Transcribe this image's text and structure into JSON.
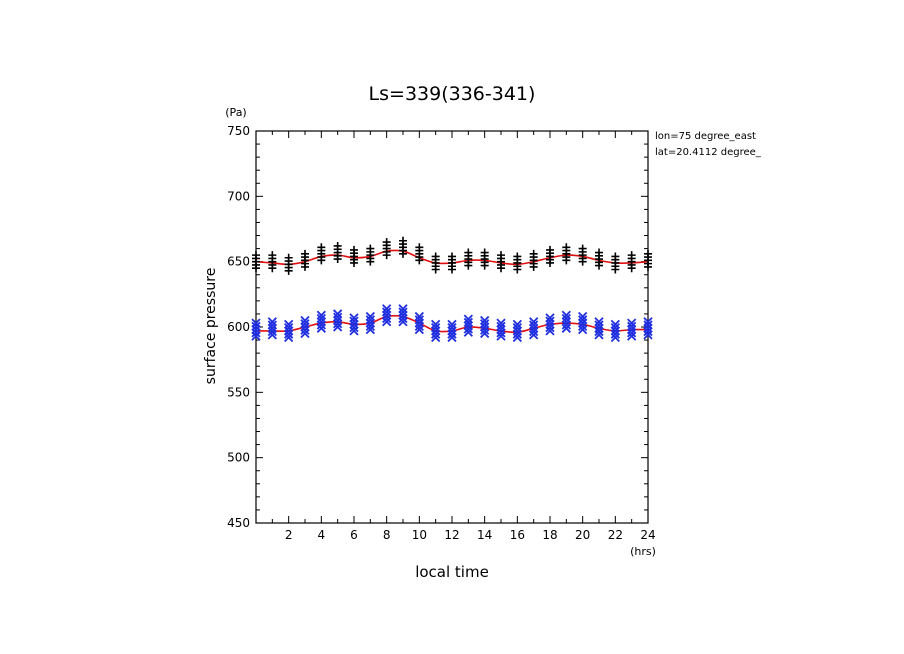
{
  "chart_data": {
    "type": "scatter",
    "title": "Ls=339(336-341)",
    "ylabel": "surface pressure",
    "yunit": "(Pa)",
    "xlabel": "local time",
    "xunit": "(hrs)",
    "annotations": [
      "lon=75 degree_east",
      "lat=20.4112 degree_"
    ],
    "xlim": [
      0,
      24
    ],
    "ylim": [
      450,
      750
    ],
    "xticks": [
      2,
      4,
      6,
      8,
      10,
      12,
      14,
      16,
      18,
      20,
      22,
      24
    ],
    "yticks": [
      450,
      500,
      550,
      600,
      650,
      700,
      750
    ],
    "grid": false,
    "colors": {
      "upper_markers": "#000000",
      "lower_markers": "#1f2fe0",
      "fit_line": "#e01010"
    },
    "series": [
      {
        "marker": "plus",
        "x": [
          0,
          1,
          2,
          3,
          4,
          5,
          6,
          7,
          8,
          9,
          10,
          11,
          12,
          13,
          14,
          15,
          16,
          17,
          18,
          19,
          20,
          21,
          22,
          23,
          24
        ],
        "y": [
          650,
          650,
          648,
          651,
          656,
          657,
          654,
          655,
          660,
          661,
          656,
          649,
          649,
          652,
          652,
          650,
          649,
          651,
          654,
          656,
          655,
          652,
          649,
          650,
          651
        ],
        "spread": 5
      },
      {
        "marker": "cross",
        "x": [
          0,
          1,
          2,
          3,
          4,
          5,
          6,
          7,
          8,
          9,
          10,
          11,
          12,
          13,
          14,
          15,
          16,
          17,
          18,
          19,
          20,
          21,
          22,
          23,
          24
        ],
        "y": [
          598,
          599,
          597,
          600,
          604,
          605,
          602,
          603,
          609,
          609,
          603,
          597,
          597,
          601,
          600,
          598,
          597,
          599,
          602,
          604,
          603,
          599,
          597,
          598,
          599
        ],
        "spread": 5
      }
    ],
    "fit_lines": [
      {
        "x": [
          0,
          1,
          2,
          3,
          4,
          5,
          6,
          7,
          8,
          9,
          10,
          11,
          12,
          13,
          14,
          15,
          16,
          17,
          18,
          19,
          20,
          21,
          22,
          23,
          24
        ],
        "y": [
          650,
          649,
          648,
          650,
          654,
          655,
          653,
          654,
          658,
          658,
          653,
          649,
          649,
          651,
          651,
          649,
          648,
          650,
          653,
          655,
          654,
          651,
          649,
          649,
          650
        ]
      },
      {
        "x": [
          0,
          1,
          2,
          3,
          4,
          5,
          6,
          7,
          8,
          9,
          10,
          11,
          12,
          13,
          14,
          15,
          16,
          17,
          18,
          19,
          20,
          21,
          22,
          23,
          24
        ],
        "y": [
          597,
          597,
          597,
          600,
          603,
          604,
          602,
          603,
          608,
          608,
          603,
          597,
          597,
          600,
          599,
          597,
          596,
          599,
          602,
          603,
          602,
          599,
          597,
          598,
          598
        ]
      }
    ]
  }
}
